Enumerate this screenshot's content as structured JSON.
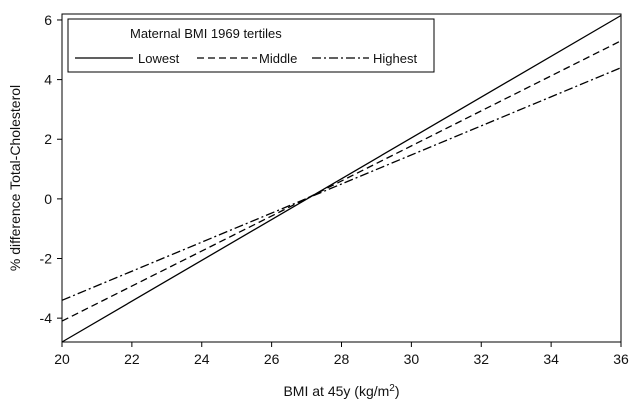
{
  "chart_data": {
    "type": "line",
    "xlabel": "BMI at 45y (kg/m",
    "xlabel_sup": "2",
    "xlabel_close": ")",
    "ylabel": "% difference Total-Cholesterol",
    "xlim": [
      20,
      36
    ],
    "ylim": [
      -4.8,
      6.2
    ],
    "xticks": [
      20,
      22,
      24,
      26,
      28,
      30,
      32,
      34,
      36
    ],
    "yticks": [
      -4,
      -2,
      0,
      2,
      4,
      6
    ],
    "grid": false,
    "legend": {
      "title": "Maternal BMI 1969 tertiles",
      "placement": "top-left"
    },
    "series": [
      {
        "name": "Lowest",
        "x": [
          20,
          36
        ],
        "y": [
          -4.8,
          6.15
        ],
        "dash": "solid",
        "color": "#000000"
      },
      {
        "name": "Middle",
        "x": [
          20,
          36
        ],
        "y": [
          -4.1,
          5.3
        ],
        "dash": "dashed",
        "color": "#000000"
      },
      {
        "name": "Highest",
        "x": [
          20,
          36
        ],
        "y": [
          -3.4,
          4.4
        ],
        "dash": "dashdot",
        "color": "#000000"
      }
    ]
  }
}
